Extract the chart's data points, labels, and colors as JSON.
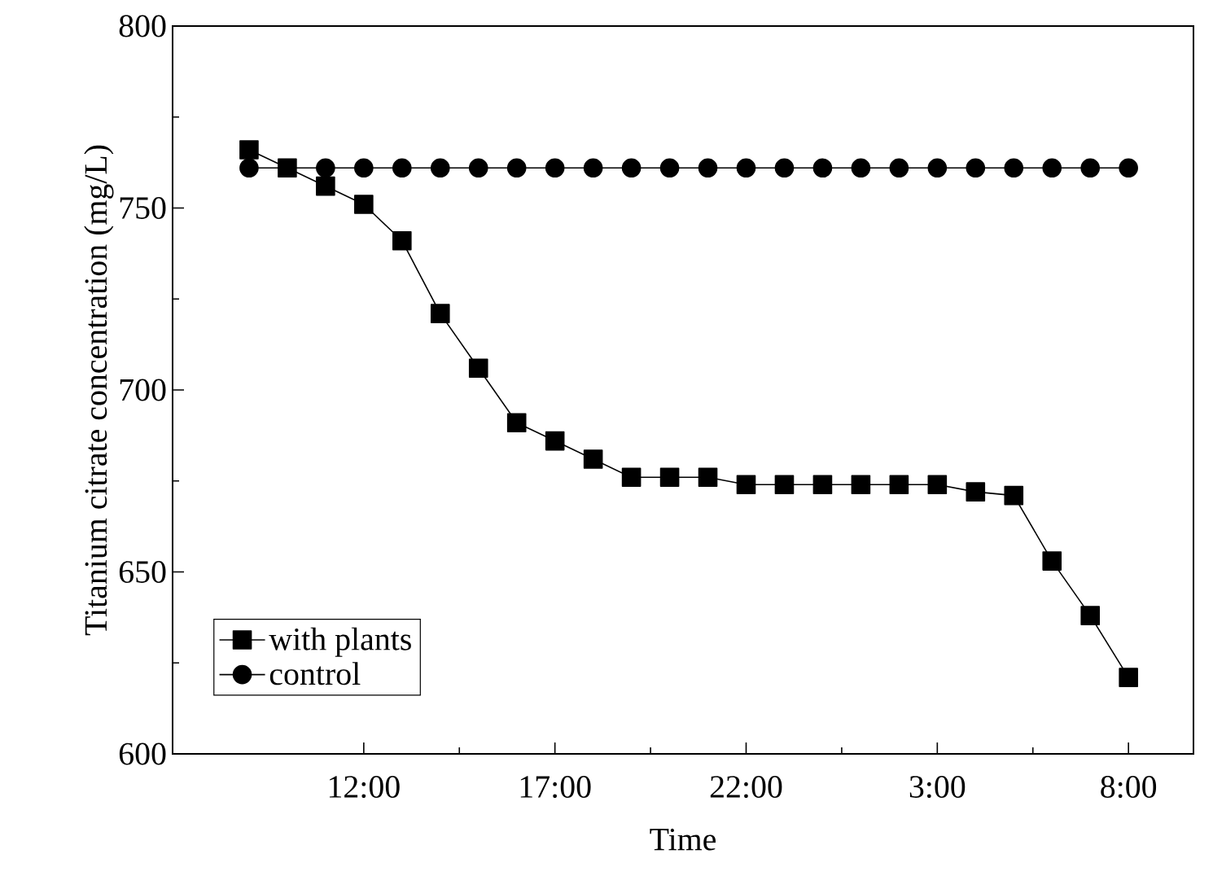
{
  "chart_data": {
    "type": "line",
    "xlabel": "Time",
    "ylabel": "Titanium citrate concentration (mg/L)",
    "x": [
      "2000-01-01T09:00",
      "2000-01-01T10:00",
      "2000-01-01T11:00",
      "2000-01-01T12:00",
      "2000-01-01T13:00",
      "2000-01-01T14:00",
      "2000-01-01T15:00",
      "2000-01-01T16:00",
      "2000-01-01T17:00",
      "2000-01-01T18:00",
      "2000-01-01T19:00",
      "2000-01-01T20:00",
      "2000-01-01T21:00",
      "2000-01-01T22:00",
      "2000-01-01T23:00",
      "2000-01-02T00:00",
      "2000-01-02T01:00",
      "2000-01-02T02:00",
      "2000-01-02T03:00",
      "2000-01-02T04:00",
      "2000-01-02T05:00",
      "2000-01-02T06:00",
      "2000-01-02T07:00",
      "2000-01-02T08:00"
    ],
    "series": [
      {
        "name": "with plants",
        "color": "#000000",
        "marker": "square",
        "values": [
          766,
          761,
          756,
          751,
          741,
          721,
          706,
          691,
          686,
          681,
          676,
          676,
          676,
          674,
          674,
          674,
          674,
          674,
          674,
          672,
          671,
          653,
          638,
          621
        ]
      },
      {
        "name": "control",
        "color": "#000000",
        "marker": "circle",
        "values": [
          761,
          null,
          761,
          761,
          761,
          761,
          761,
          761,
          761,
          761,
          761,
          761,
          761,
          761,
          761,
          761,
          761,
          761,
          761,
          761,
          761,
          761,
          761,
          761
        ]
      }
    ],
    "xlim": [
      "2000-01-01T07:00",
      "2000-01-02T09:42"
    ],
    "xticks": [
      {
        "value": "2000-01-01T12:00",
        "label": "12:00"
      },
      {
        "value": "2000-01-01T17:00",
        "label": "17:00"
      },
      {
        "value": "2000-01-01T22:00",
        "label": "22:00"
      },
      {
        "value": "2000-01-02T03:00",
        "label": "3:00"
      },
      {
        "value": "2000-01-02T08:00",
        "label": "8:00"
      }
    ],
    "ylim": [
      600,
      800
    ],
    "yticks": [
      600,
      650,
      700,
      750,
      800
    ],
    "legend": "bottom left",
    "grid": false,
    "line_style": "solid"
  }
}
